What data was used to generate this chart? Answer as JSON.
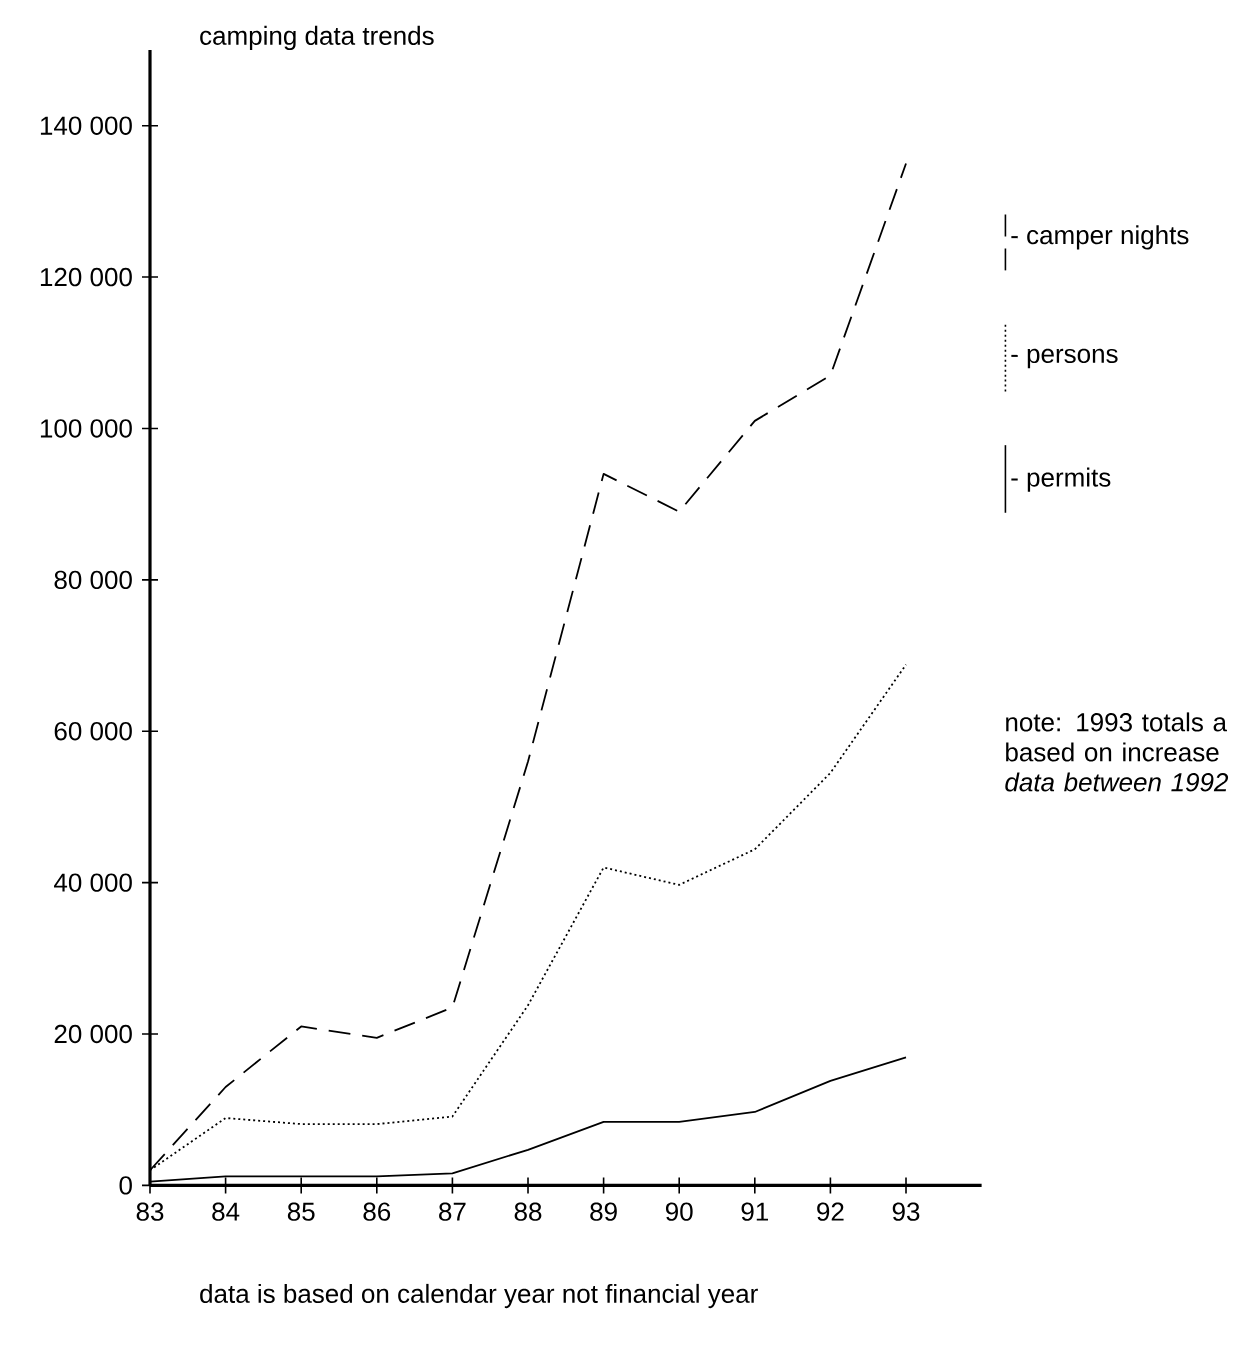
{
  "chart_data": {
    "type": "line",
    "title": "camping data trends",
    "x": [
      83,
      84,
      85,
      86,
      87,
      88,
      89,
      90,
      91,
      92,
      93
    ],
    "xlim": [
      83,
      94
    ],
    "xticks": [
      83,
      84,
      85,
      86,
      87,
      88,
      89,
      90,
      91,
      92,
      93
    ],
    "ylim": [
      0,
      150000
    ],
    "yticks": [
      {
        "value": 0,
        "label": "0"
      },
      {
        "value": 20000,
        "label": "20 000"
      },
      {
        "value": 40000,
        "label": "40 000"
      },
      {
        "value": 60000,
        "label": "60 000"
      },
      {
        "value": 80000,
        "label": "80 000"
      },
      {
        "value": 100000,
        "label": "100 000"
      },
      {
        "value": 120000,
        "label": "120 000"
      },
      {
        "value": 140000,
        "label": "140 000"
      }
    ],
    "series": [
      {
        "name": "- camper nights",
        "color": "#000000",
        "line_style": "dashed",
        "values": [
          2000,
          13000,
          21000,
          19500,
          23500,
          56000,
          94000,
          89000,
          101000,
          107000,
          135000
        ]
      },
      {
        "name": "- persons",
        "color": "#000000",
        "line_style": "dotted",
        "values": [
          2000,
          8900,
          8100,
          8100,
          9100,
          23800,
          42000,
          39700,
          44400,
          54500,
          68800
        ]
      },
      {
        "name": "- permits",
        "color": "#000000",
        "line_style": "solid",
        "values": [
          500,
          1200,
          1200,
          1200,
          1600,
          4700,
          8400,
          8400,
          9700,
          13800,
          16900
        ]
      }
    ],
    "legend": "right",
    "marker": "none",
    "grid": false,
    "annotations": [
      "data is based on calendar year not financial year",
      "note: 1993 totals a based on increase *data between 1992*"
    ]
  }
}
